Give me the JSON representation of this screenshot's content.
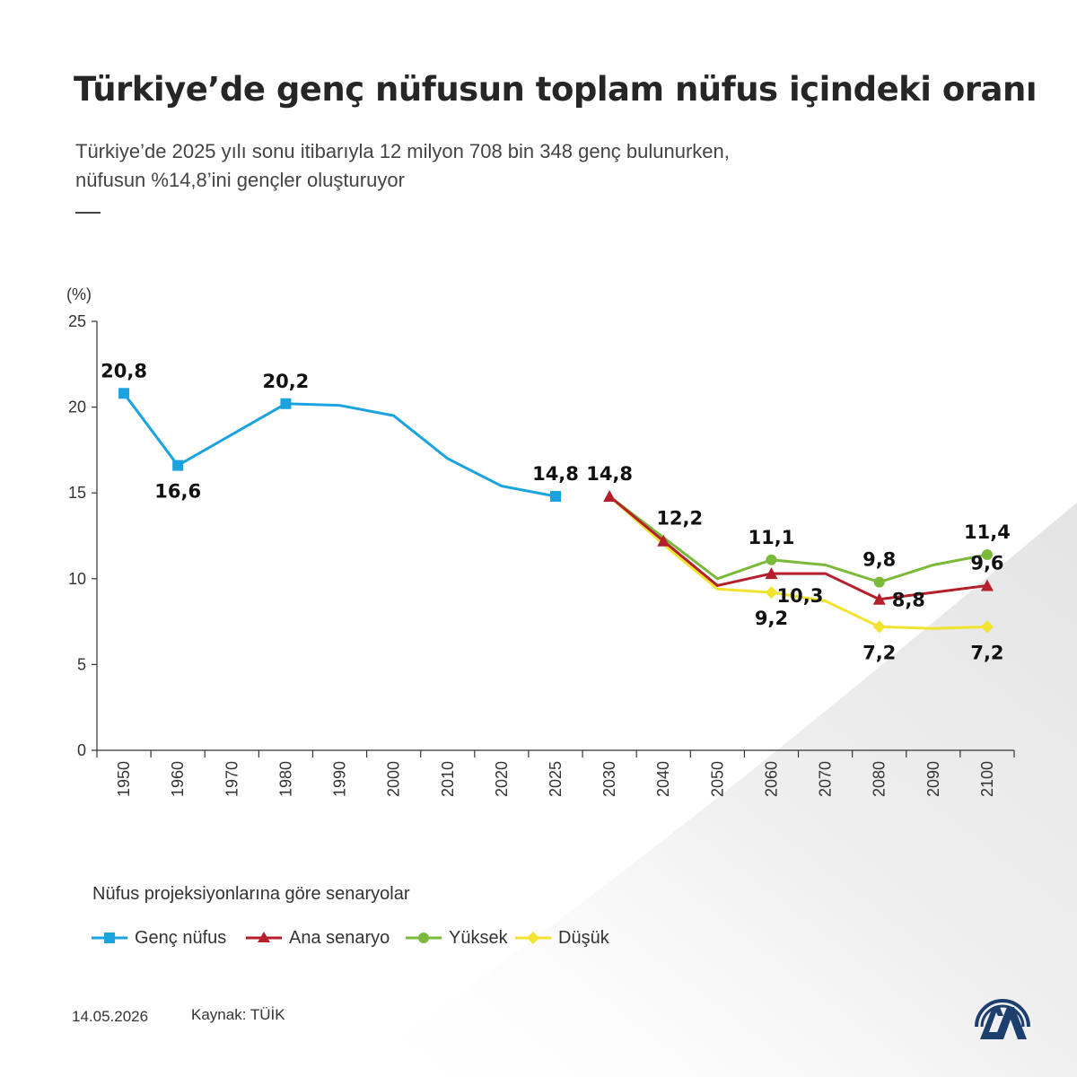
{
  "header": {
    "title": "Türkiye’de genç nüfusun toplam nüfus içindeki oranı",
    "subtitle_line1": "Türkiye’de 2025 yılı sonu itibarıyla 12 milyon 708 bin 348 genç bulunurken,",
    "subtitle_line2": "nüfusun %14,8’ini gençler oluşturuyor"
  },
  "legend": {
    "title": "Nüfus projeksiyonlarına göre senaryolar",
    "items": [
      {
        "label": "Genç nüfus",
        "color": "#1aa3de",
        "marker": "square"
      },
      {
        "label": "Ana senaryo",
        "color": "#b51f2b",
        "marker": "triangle"
      },
      {
        "label": "Yüksek",
        "color": "#7bb93b",
        "marker": "circle"
      },
      {
        "label": "Düşük",
        "color": "#f2e330",
        "marker": "diamond"
      }
    ]
  },
  "footer": {
    "date": "14.05.2026",
    "source": "Kaynak: TÜİK"
  },
  "logo": {
    "name": "AA"
  },
  "chart_data": {
    "type": "line",
    "ylabel": "(%)",
    "ylim": [
      0,
      25
    ],
    "yticks": [
      "0",
      "5",
      "10",
      "15",
      "20",
      "25"
    ],
    "categories": [
      "1950",
      "1960",
      "1970",
      "1980",
      "1990",
      "2000",
      "2010",
      "2020",
      "2025",
      "2030",
      "2040",
      "2050",
      "2060",
      "2070",
      "2080",
      "2090",
      "2100"
    ],
    "grid": false,
    "series": [
      {
        "name": "Genç nüfus",
        "color": "#1aa3de",
        "marker": "square",
        "values": [
          20.8,
          16.6,
          18.4,
          20.2,
          20.1,
          19.5,
          17.0,
          15.4,
          14.8,
          null,
          null,
          null,
          null,
          null,
          null,
          null,
          null
        ],
        "markers_at": [
          "1950",
          "1960",
          "1980",
          "2025"
        ],
        "labels": [
          {
            "category": "1950",
            "text": "20,8",
            "pos": "above"
          },
          {
            "category": "1960",
            "text": "16,6",
            "pos": "below"
          },
          {
            "category": "1980",
            "text": "20,2",
            "pos": "above"
          },
          {
            "category": "2025",
            "text": "14,8",
            "pos": "above"
          }
        ]
      },
      {
        "name": "Düşük",
        "color": "#f2e330",
        "marker": "diamond",
        "values": [
          null,
          null,
          null,
          null,
          null,
          null,
          null,
          null,
          null,
          14.8,
          12.0,
          9.4,
          9.2,
          8.7,
          7.2,
          7.1,
          7.2
        ],
        "markers_at": [
          "2060",
          "2080",
          "2100"
        ],
        "labels": [
          {
            "category": "2060",
            "text": "9,2",
            "pos": "below"
          },
          {
            "category": "2080",
            "text": "7,2",
            "pos": "below"
          },
          {
            "category": "2100",
            "text": "7,2",
            "pos": "below"
          }
        ]
      },
      {
        "name": "Yüksek",
        "color": "#7bb93b",
        "marker": "circle",
        "values": [
          null,
          null,
          null,
          null,
          null,
          null,
          null,
          null,
          null,
          14.8,
          12.4,
          10.0,
          11.1,
          10.8,
          9.8,
          10.8,
          11.4
        ],
        "markers_at": [
          "2060",
          "2080",
          "2100"
        ],
        "labels": [
          {
            "category": "2060",
            "text": "11,1",
            "pos": "above"
          },
          {
            "category": "2080",
            "text": "9,8",
            "pos": "above"
          },
          {
            "category": "2100",
            "text": "11,4",
            "pos": "above"
          }
        ]
      },
      {
        "name": "Ana senaryo",
        "color": "#b51f2b",
        "marker": "triangle",
        "values": [
          null,
          null,
          null,
          null,
          null,
          null,
          null,
          null,
          null,
          14.8,
          12.2,
          9.6,
          10.3,
          10.3,
          8.8,
          9.2,
          9.6
        ],
        "markers_at": [
          "2030",
          "2040",
          "2060",
          "2080",
          "2100"
        ],
        "labels": [
          {
            "category": "2030",
            "text": "14,8",
            "pos": "above"
          },
          {
            "category": "2040",
            "text": "12,2",
            "pos": "above-right"
          },
          {
            "category": "2060",
            "text": "10,3",
            "pos": "below-right"
          },
          {
            "category": "2080",
            "text": "8,8",
            "pos": "right"
          },
          {
            "category": "2100",
            "text": "9,6",
            "pos": "above"
          }
        ]
      }
    ]
  }
}
